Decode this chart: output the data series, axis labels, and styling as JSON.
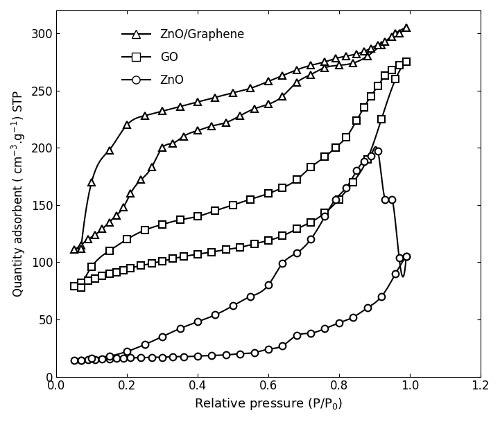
{
  "xlabel": "Relative pressure (P/P$_0$)",
  "ylabel": "Quantity adsorbent ( cm$^{-3}$.g$^{-1}$) STP",
  "xlim": [
    0,
    1.2
  ],
  "ylim": [
    0,
    320
  ],
  "xticks": [
    0.0,
    0.2,
    0.4,
    0.6,
    0.8,
    1.0,
    1.2
  ],
  "yticks": [
    0,
    50,
    100,
    150,
    200,
    250,
    300
  ],
  "ZnO_graphene_ads_x": [
    0.05,
    0.07,
    0.09,
    0.11,
    0.13,
    0.15,
    0.17,
    0.19,
    0.21,
    0.24,
    0.27,
    0.3,
    0.33,
    0.36,
    0.4,
    0.44,
    0.48,
    0.52,
    0.56,
    0.6,
    0.64,
    0.68,
    0.72,
    0.76,
    0.8,
    0.84,
    0.88,
    0.92,
    0.96,
    0.99
  ],
  "ZnO_graphene_ads_y": [
    111,
    115,
    120,
    124,
    129,
    135,
    141,
    148,
    160,
    172,
    183,
    200,
    204,
    210,
    215,
    219,
    222,
    228,
    234,
    238,
    245,
    257,
    264,
    270,
    272,
    274,
    280,
    290,
    300,
    305
  ],
  "ZnO_graphene_des_x": [
    0.07,
    0.1,
    0.15,
    0.2,
    0.25,
    0.3,
    0.35,
    0.4,
    0.45,
    0.5,
    0.55,
    0.6,
    0.64,
    0.68,
    0.72,
    0.76,
    0.79,
    0.82,
    0.85,
    0.87,
    0.89,
    0.91,
    0.93,
    0.95,
    0.97,
    0.99
  ],
  "ZnO_graphene_des_y": [
    112,
    170,
    198,
    220,
    228,
    232,
    236,
    240,
    244,
    248,
    252,
    258,
    263,
    268,
    272,
    275,
    278,
    280,
    282,
    284,
    287,
    290,
    293,
    297,
    300,
    305
  ],
  "GO_ads_x": [
    0.05,
    0.07,
    0.09,
    0.11,
    0.13,
    0.15,
    0.17,
    0.19,
    0.21,
    0.24,
    0.27,
    0.3,
    0.33,
    0.36,
    0.4,
    0.44,
    0.48,
    0.52,
    0.56,
    0.6,
    0.64,
    0.68,
    0.72,
    0.76,
    0.8,
    0.84,
    0.88,
    0.92,
    0.96,
    0.99
  ],
  "GO_ads_y": [
    79,
    82,
    84,
    86,
    88,
    90,
    91,
    93,
    95,
    97,
    99,
    101,
    103,
    105,
    107,
    109,
    111,
    113,
    116,
    119,
    123,
    129,
    135,
    143,
    155,
    170,
    190,
    225,
    260,
    275
  ],
  "GO_des_x": [
    0.07,
    0.1,
    0.15,
    0.2,
    0.25,
    0.3,
    0.35,
    0.4,
    0.45,
    0.5,
    0.55,
    0.6,
    0.64,
    0.68,
    0.72,
    0.76,
    0.79,
    0.82,
    0.85,
    0.87,
    0.89,
    0.91,
    0.93,
    0.95,
    0.97,
    0.99
  ],
  "GO_des_y": [
    78,
    96,
    110,
    120,
    128,
    133,
    137,
    140,
    145,
    150,
    155,
    160,
    165,
    172,
    183,
    192,
    200,
    209,
    224,
    235,
    245,
    254,
    263,
    268,
    272,
    275
  ],
  "ZnO_ads_x": [
    0.05,
    0.07,
    0.09,
    0.11,
    0.13,
    0.15,
    0.17,
    0.19,
    0.21,
    0.24,
    0.27,
    0.3,
    0.33,
    0.36,
    0.4,
    0.44,
    0.48,
    0.52,
    0.56,
    0.6,
    0.64,
    0.68,
    0.72,
    0.76,
    0.8,
    0.84,
    0.88,
    0.92,
    0.96,
    0.99
  ],
  "ZnO_ads_y": [
    14,
    14.5,
    15,
    15,
    15.5,
    15.5,
    16,
    16,
    16.5,
    16.5,
    17,
    17,
    17.5,
    17.5,
    18,
    18.5,
    19,
    20,
    21,
    24,
    27,
    36,
    38,
    42,
    47,
    52,
    60,
    70,
    90,
    105
  ],
  "ZnO_des_x": [
    0.07,
    0.1,
    0.15,
    0.2,
    0.25,
    0.3,
    0.35,
    0.4,
    0.45,
    0.5,
    0.55,
    0.6,
    0.64,
    0.68,
    0.72,
    0.76,
    0.79,
    0.82,
    0.85,
    0.87,
    0.89,
    0.91,
    0.93,
    0.95,
    0.97,
    0.99
  ],
  "ZnO_des_y": [
    14,
    16,
    18,
    22,
    28,
    35,
    42,
    48,
    54,
    62,
    70,
    80,
    99,
    108,
    120,
    140,
    155,
    165,
    180,
    188,
    193,
    197,
    155,
    155,
    104,
    105
  ],
  "line_color": "black",
  "background_color": "white"
}
